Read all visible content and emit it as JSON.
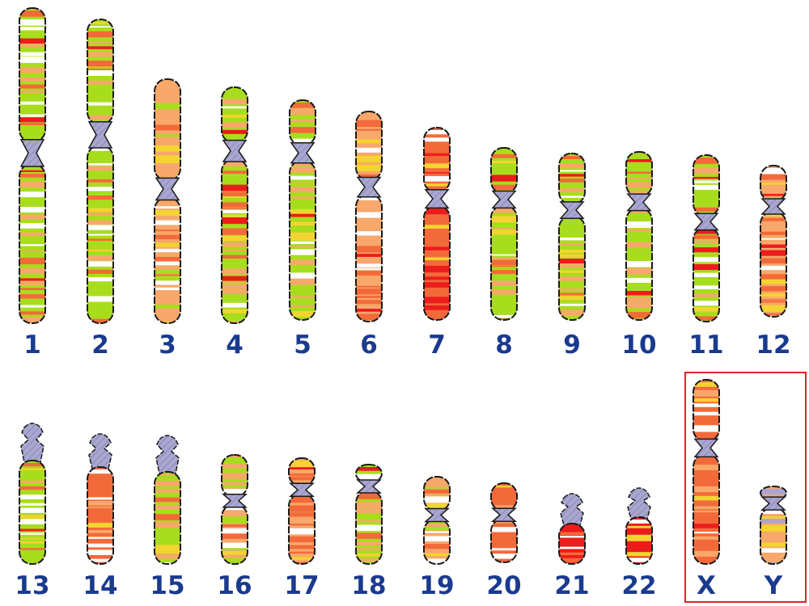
{
  "colors": {
    "green": "#a8dd1e",
    "light_orange": "#f7a86a",
    "orange": "#f36a3a",
    "red": "#ec1c1c",
    "yellow": "#f3d431",
    "white": "#ffffff",
    "centromere": "#a9a7cf",
    "outline": "#1a1a1a",
    "label": "#1a3a8e",
    "highlight_box": "#e0242a"
  },
  "chromosomes": [
    {
      "label": "1",
      "base": "green",
      "alt": "light_orange",
      "p_ratio": 0.46,
      "stalk": false,
      "seed": 3
    },
    {
      "label": "2",
      "base": "green",
      "alt": "light_orange",
      "p_ratio": 0.38,
      "stalk": false,
      "seed": 7
    },
    {
      "label": "3",
      "base": "light_orange",
      "alt": "green",
      "p_ratio": 0.45,
      "stalk": false,
      "seed": 11
    },
    {
      "label": "4",
      "base": "green",
      "alt": "light_orange",
      "p_ratio": 0.27,
      "stalk": false,
      "seed": 13
    },
    {
      "label": "5",
      "base": "green",
      "alt": "light_orange",
      "p_ratio": 0.24,
      "stalk": false,
      "seed": 17
    },
    {
      "label": "6",
      "base": "light_orange",
      "alt": "orange",
      "p_ratio": 0.36,
      "stalk": false,
      "seed": 19
    },
    {
      "label": "7",
      "base": "orange",
      "alt": "red",
      "p_ratio": 0.37,
      "stalk": false,
      "seed": 23
    },
    {
      "label": "8",
      "base": "green",
      "alt": "light_orange",
      "p_ratio": 0.3,
      "stalk": false,
      "seed": 29
    },
    {
      "label": "9",
      "base": "green",
      "alt": "light_orange",
      "p_ratio": 0.34,
      "stalk": false,
      "seed": 31
    },
    {
      "label": "10",
      "base": "green",
      "alt": "light_orange",
      "p_ratio": 0.3,
      "stalk": false,
      "seed": 37
    },
    {
      "label": "11",
      "base": "green",
      "alt": "light_orange",
      "p_ratio": 0.4,
      "stalk": false,
      "seed": 41
    },
    {
      "label": "12",
      "base": "light_orange",
      "alt": "orange",
      "p_ratio": 0.27,
      "stalk": false,
      "seed": 43
    },
    {
      "label": "13",
      "base": "green",
      "alt": "light_orange",
      "p_ratio": 0.0,
      "stalk": true,
      "seed": 47
    },
    {
      "label": "14",
      "base": "orange",
      "alt": "light_orange",
      "p_ratio": 0.0,
      "stalk": true,
      "seed": 53
    },
    {
      "label": "15",
      "base": "green",
      "alt": "light_orange",
      "p_ratio": 0.0,
      "stalk": true,
      "seed": 59
    },
    {
      "label": "16",
      "base": "light_orange",
      "alt": "green",
      "p_ratio": 0.42,
      "stalk": false,
      "seed": 61
    },
    {
      "label": "17",
      "base": "light_orange",
      "alt": "orange",
      "p_ratio": 0.3,
      "stalk": false,
      "seed": 67
    },
    {
      "label": "18",
      "base": "green",
      "alt": "light_orange",
      "p_ratio": 0.22,
      "stalk": false,
      "seed": 71
    },
    {
      "label": "19",
      "base": "light_orange",
      "alt": "green",
      "p_ratio": 0.44,
      "stalk": false,
      "seed": 73
    },
    {
      "label": "20",
      "base": "orange",
      "alt": "light_orange",
      "p_ratio": 0.4,
      "stalk": false,
      "seed": 79
    },
    {
      "label": "21",
      "base": "red",
      "alt": "orange",
      "p_ratio": 0.0,
      "stalk": true,
      "seed": 83
    },
    {
      "label": "22",
      "base": "red",
      "alt": "red",
      "p_ratio": 0.0,
      "stalk": true,
      "seed": 89
    },
    {
      "label": "X",
      "base": "orange",
      "alt": "light_orange",
      "p_ratio": 0.37,
      "stalk": false,
      "seed": 97
    },
    {
      "label": "Y",
      "base": "light_orange",
      "alt": "centromere",
      "p_ratio": 0.22,
      "stalk": false,
      "seed": 101
    }
  ]
}
